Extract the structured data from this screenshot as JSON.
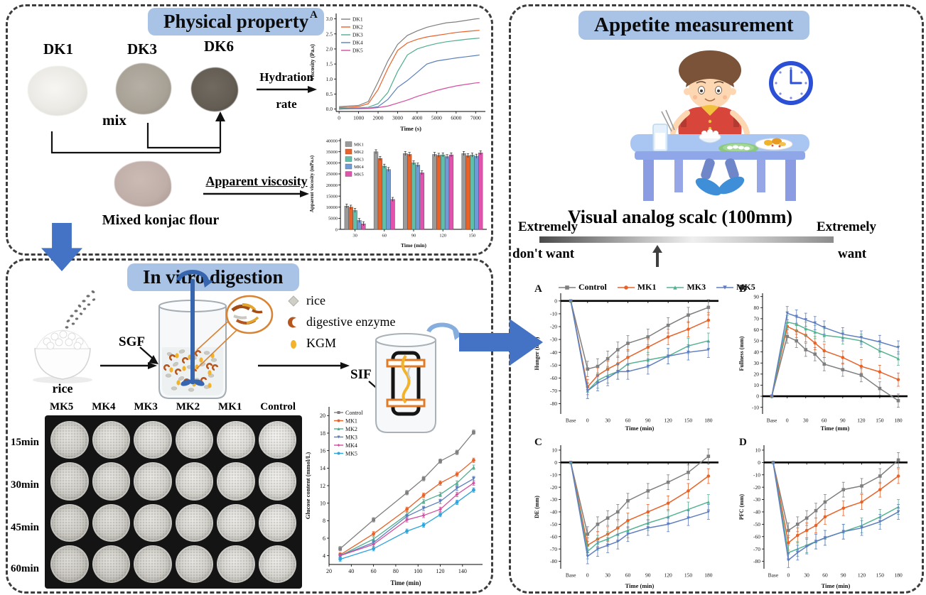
{
  "panels": {
    "physical": {
      "title": "Physical property",
      "samples": [
        "DK1",
        "DK3",
        "DK6"
      ],
      "mix_label": "mix",
      "hydration_label_1": "Hydration",
      "hydration_label_2": "rate",
      "flour_label": "Mixed konjac flour",
      "apparent_label": "Apparent viscosity"
    },
    "digestion": {
      "title": "In vitro digestion",
      "rice_label": "rice",
      "sgf_label": "SGF",
      "sif_label": "SIF",
      "legend": [
        "rice",
        "digestive enzyme",
        "KGM"
      ],
      "plate_columns": [
        "MK5",
        "MK4",
        "MK3",
        "MK2",
        "MK1",
        "Control"
      ],
      "plate_rows": [
        "15min",
        "30min",
        "45min",
        "60min"
      ]
    },
    "appetite": {
      "title": "Appetite measurement",
      "vas_title": "Visual analog scalc (100mm)",
      "left_label_1": "Extremely",
      "left_label_2": "don't want",
      "right_label_1": "Extremely",
      "right_label_2": "want"
    }
  },
  "colors": {
    "accent_arrow": "#4472c4",
    "title_bg": "#a9c3e6"
  },
  "chart_data": [
    {
      "id": "viscosity",
      "type": "line",
      "panel_label": "A",
      "xlabel": "Time (s)",
      "ylabel": "Viscosity (Pa.s)",
      "xlim": [
        -150,
        7500
      ],
      "ylim": [
        -0.08,
        3.18
      ],
      "xticks": [
        0,
        1000,
        2000,
        3000,
        4000,
        5000,
        6000,
        7000
      ],
      "yticks": [
        0,
        0.5,
        1,
        1.5,
        2,
        2.5,
        3
      ],
      "ytick_labels": [
        "0.0",
        "0.5",
        "1.0",
        "1.5",
        "2.0",
        "2.5",
        "3.0"
      ],
      "bottom_spine": true,
      "err": 0,
      "x": [
        0,
        500,
        1000,
        1500,
        2000,
        2500,
        3000,
        3500,
        4000,
        4500,
        5000,
        5500,
        6000,
        6500,
        7000,
        7200
      ],
      "series": [
        {
          "name": "DK1",
          "color": "#7f7f7f",
          "values": [
            0.08,
            0.1,
            0.12,
            0.25,
            0.9,
            1.6,
            2.15,
            2.45,
            2.6,
            2.72,
            2.8,
            2.87,
            2.9,
            2.95,
            3.0,
            3.01
          ]
        },
        {
          "name": "DK2",
          "color": "#e8632a",
          "values": [
            0.05,
            0.06,
            0.08,
            0.18,
            0.65,
            1.35,
            1.95,
            2.2,
            2.32,
            2.4,
            2.45,
            2.5,
            2.55,
            2.58,
            2.61,
            2.62
          ]
        },
        {
          "name": "DK3",
          "color": "#4fae8e",
          "values": [
            0.02,
            0.03,
            0.04,
            0.06,
            0.18,
            0.55,
            1.25,
            1.8,
            2.0,
            2.1,
            2.18,
            2.24,
            2.28,
            2.32,
            2.35,
            2.36
          ]
        },
        {
          "name": "DK4",
          "color": "#5b7fbd",
          "values": [
            0.0,
            0.01,
            0.02,
            0.03,
            0.08,
            0.32,
            0.72,
            0.95,
            1.22,
            1.5,
            1.6,
            1.65,
            1.7,
            1.74,
            1.78,
            1.8
          ]
        },
        {
          "name": "DK5",
          "color": "#d44f9f",
          "values": [
            0.0,
            0.01,
            0.01,
            0.02,
            0.05,
            0.1,
            0.2,
            0.3,
            0.42,
            0.52,
            0.62,
            0.7,
            0.77,
            0.82,
            0.87,
            0.88
          ]
        }
      ]
    },
    {
      "id": "apparent",
      "type": "bar",
      "xlabel": "Time (min)",
      "ylabel": "Apparent viscosity (mPa.s)",
      "categories": [
        "30",
        "60",
        "90",
        "120",
        "150"
      ],
      "ylim": [
        0,
        41000
      ],
      "yticks": [
        0,
        5000,
        10000,
        15000,
        20000,
        25000,
        30000,
        35000,
        40000
      ],
      "ytick_labels": [
        "0",
        "5000",
        "10000",
        "15000",
        "20000",
        "25000",
        "30000",
        "35000",
        "40000"
      ],
      "err": 900,
      "series": [
        {
          "name": "MK1",
          "color": "#9a9a9a",
          "values": [
            10500,
            35000,
            34200,
            33800,
            34200
          ]
        },
        {
          "name": "MK2",
          "color": "#e8632a",
          "values": [
            10000,
            32000,
            33800,
            33400,
            33200
          ]
        },
        {
          "name": "MK3",
          "color": "#5fbfa8",
          "values": [
            8500,
            28500,
            30000,
            33600,
            33500
          ]
        },
        {
          "name": "MK4",
          "color": "#6f9bd6",
          "values": [
            4000,
            27000,
            29000,
            32800,
            33000
          ]
        },
        {
          "name": "MK5",
          "color": "#e054ae",
          "values": [
            2500,
            13500,
            25500,
            33600,
            34500
          ]
        }
      ]
    },
    {
      "id": "glucose",
      "type": "line",
      "xlabel": "Time (min)",
      "ylabel": "Glucose content (mmol/L)",
      "xlim": [
        20,
        158
      ],
      "ylim": [
        3,
        21
      ],
      "xticks": [
        20,
        40,
        60,
        80,
        100,
        120,
        140
      ],
      "yticks": [
        4,
        6,
        8,
        10,
        12,
        14,
        16,
        18,
        20
      ],
      "bottom_spine": true,
      "err": 0.25,
      "x": [
        30,
        60,
        90,
        105,
        120,
        135,
        150
      ],
      "series": [
        {
          "name": "Control",
          "color": "#7f7f7f",
          "marker": "square",
          "values": [
            4.8,
            8.1,
            11.2,
            12.8,
            14.8,
            15.8,
            18.1
          ]
        },
        {
          "name": "MK1",
          "color": "#e8632a",
          "marker": "circle",
          "values": [
            4.1,
            6.5,
            9.3,
            10.9,
            12.3,
            13.3,
            14.9
          ]
        },
        {
          "name": "MK2",
          "color": "#4fae8e",
          "marker": "tri-up",
          "values": [
            4.0,
            5.9,
            8.7,
            10.2,
            11.0,
            12.3,
            14.1
          ]
        },
        {
          "name": "MK3",
          "color": "#5b7fbd",
          "marker": "tri-down",
          "values": [
            4.0,
            5.5,
            8.5,
            9.4,
            10.2,
            11.7,
            12.8
          ]
        },
        {
          "name": "MK4",
          "color": "#d44f9f",
          "marker": "diamond",
          "values": [
            4.0,
            5.3,
            8.1,
            8.6,
            9.3,
            11.0,
            12.3
          ]
        },
        {
          "name": "MK5",
          "color": "#2fa3dc",
          "marker": "circle",
          "values": [
            3.6,
            4.8,
            6.8,
            7.5,
            8.7,
            10.1,
            11.5
          ]
        }
      ]
    },
    {
      "id": "hunger",
      "type": "line",
      "panel_label": "A",
      "xlabel": "Time (min)",
      "ylabel": "Hunger (mm)",
      "xlim": [
        -40,
        195
      ],
      "ylim": [
        -88,
        6
      ],
      "x": [
        -25,
        0,
        15,
        30,
        45,
        60,
        90,
        120,
        150,
        180
      ],
      "xticks": [
        -25,
        0,
        30,
        60,
        90,
        120,
        150,
        180
      ],
      "xtick_labels": [
        "Base",
        "0",
        "30",
        "60",
        "90",
        "120",
        "150",
        "180"
      ],
      "yticks": [
        0,
        -10,
        -20,
        -30,
        -40,
        -50,
        -60,
        -70,
        -80
      ],
      "ytick_labels": [
        "0",
        "-10",
        "-20",
        "-30",
        "-40",
        "-50",
        "-60",
        "-70",
        "-80"
      ],
      "zero_line": 0,
      "err": 6,
      "err_skip_first": true,
      "series": [
        {
          "name": "Control",
          "color": "#7f7f7f",
          "marker": "square",
          "values": [
            0,
            -53,
            -51,
            -45,
            -38,
            -33,
            -28,
            -19,
            -11,
            -5
          ]
        },
        {
          "name": "MK1",
          "color": "#e8632a",
          "marker": "circle",
          "values": [
            0,
            -67,
            -58,
            -53,
            -49,
            -44,
            -36,
            -28,
            -22,
            -15
          ]
        },
        {
          "name": "MK3",
          "color": "#55b391",
          "marker": "tri-up",
          "values": [
            0,
            -70,
            -62,
            -58,
            -55,
            -49,
            -46,
            -43,
            -35,
            -31
          ]
        },
        {
          "name": "MK5",
          "color": "#5f7ec1",
          "marker": "tri-down",
          "values": [
            0,
            -70,
            -64,
            -60,
            -55,
            -55,
            -51,
            -43,
            -40,
            -38
          ]
        }
      ]
    },
    {
      "id": "fullness",
      "type": "line",
      "panel_label": "B",
      "xlabel": "Time (mm)",
      "ylabel": "Fullness (mm)",
      "xlim": [
        -40,
        195
      ],
      "ylim": [
        -16,
        93
      ],
      "x": [
        -25,
        0,
        15,
        30,
        45,
        60,
        90,
        120,
        150,
        180
      ],
      "xticks": [
        -25,
        0,
        30,
        60,
        90,
        120,
        150,
        180
      ],
      "xtick_labels": [
        "Base",
        "0",
        "30",
        "60",
        "90",
        "120",
        "150",
        "180"
      ],
      "yticks": [
        90,
        80,
        70,
        60,
        50,
        40,
        30,
        20,
        10,
        0,
        -10
      ],
      "ytick_labels": [
        "90",
        "80",
        "70",
        "60",
        "50",
        "40",
        "30",
        "20",
        "10",
        "0",
        "-10"
      ],
      "zero_line": 0,
      "err": 6,
      "err_skip_first": true,
      "series": [
        {
          "name": "Control",
          "color": "#7f7f7f",
          "marker": "square",
          "values": [
            0,
            54,
            50,
            42,
            38,
            29,
            24,
            19,
            7,
            -4
          ]
        },
        {
          "name": "MK1",
          "color": "#e8632a",
          "marker": "circle",
          "values": [
            0,
            63,
            59,
            55,
            48,
            41,
            35,
            27,
            22,
            15
          ]
        },
        {
          "name": "MK3",
          "color": "#55b391",
          "marker": "tri-up",
          "values": [
            0,
            67,
            65,
            61,
            58,
            55,
            53,
            50,
            41,
            34
          ]
        },
        {
          "name": "MK5",
          "color": "#5f7ec1",
          "marker": "tri-down",
          "values": [
            0,
            75,
            72,
            69,
            66,
            62,
            56,
            53,
            49,
            44
          ]
        }
      ]
    },
    {
      "id": "de",
      "type": "line",
      "panel_label": "C",
      "xlabel": "Time (min)",
      "ylabel": "DE (mm)",
      "xlim": [
        -40,
        195
      ],
      "ylim": [
        -86,
        14
      ],
      "x": [
        -25,
        0,
        15,
        30,
        45,
        60,
        90,
        120,
        150,
        180
      ],
      "xticks": [
        -25,
        0,
        30,
        60,
        90,
        120,
        150,
        180
      ],
      "xtick_labels": [
        "Base",
        "0",
        "30",
        "60",
        "90",
        "120",
        "150",
        "180"
      ],
      "yticks": [
        10,
        0,
        -10,
        -20,
        -30,
        -40,
        -50,
        -60,
        -70,
        -80
      ],
      "ytick_labels": [
        "10",
        "0",
        "-10",
        "-20",
        "-30",
        "-40",
        "-50",
        "-60",
        "-70",
        "-80"
      ],
      "zero_line": 0,
      "err": 6,
      "err_skip_first": true,
      "series": [
        {
          "name": "Control",
          "color": "#7f7f7f",
          "marker": "square",
          "values": [
            0,
            -58,
            -50,
            -45,
            -40,
            -31,
            -23,
            -16,
            -8,
            5
          ]
        },
        {
          "name": "MK1",
          "color": "#e8632a",
          "marker": "circle",
          "values": [
            0,
            -67,
            -62,
            -58,
            -53,
            -47,
            -40,
            -33,
            -23,
            -11
          ]
        },
        {
          "name": "MK3",
          "color": "#55b391",
          "marker": "tri-up",
          "values": [
            0,
            -72,
            -65,
            -62,
            -58,
            -55,
            -49,
            -44,
            -38,
            -32
          ]
        },
        {
          "name": "MK5",
          "color": "#5f7ec1",
          "marker": "tri-down",
          "values": [
            0,
            -76,
            -70,
            -67,
            -64,
            -58,
            -53,
            -50,
            -45,
            -40
          ]
        }
      ]
    },
    {
      "id": "pfc",
      "type": "line",
      "panel_label": "D",
      "xlabel": "Time (min)",
      "ylabel": "PFC (mm)",
      "xlim": [
        -40,
        195
      ],
      "ylim": [
        -86,
        14
      ],
      "x": [
        -25,
        0,
        15,
        30,
        45,
        60,
        90,
        120,
        150,
        180
      ],
      "xticks": [
        -25,
        0,
        30,
        60,
        90,
        120,
        150,
        180
      ],
      "xtick_labels": [
        "Base",
        "0",
        "30",
        "60",
        "90",
        "120",
        "150",
        "180"
      ],
      "yticks": [
        10,
        0,
        -10,
        -20,
        -30,
        -40,
        -50,
        -60,
        -70,
        -80
      ],
      "ytick_labels": [
        "10",
        "0",
        "-10",
        "-20",
        "-30",
        "-40",
        "-50",
        "-60",
        "-70",
        "-80"
      ],
      "zero_line": 0,
      "err": 6,
      "err_skip_first": true,
      "series": [
        {
          "name": "Control",
          "color": "#7f7f7f",
          "marker": "square",
          "values": [
            0,
            -55,
            -50,
            -45,
            -39,
            -32,
            -22,
            -19,
            -11,
            2
          ]
        },
        {
          "name": "MK1",
          "color": "#e8632a",
          "marker": "circle",
          "values": [
            0,
            -65,
            -59,
            -55,
            -51,
            -44,
            -37,
            -32,
            -22,
            -11
          ]
        },
        {
          "name": "MK3",
          "color": "#55b391",
          "marker": "tri-up",
          "values": [
            0,
            -73,
            -70,
            -67,
            -64,
            -61,
            -56,
            -51,
            -44,
            -36
          ]
        },
        {
          "name": "MK5",
          "color": "#5f7ec1",
          "marker": "tri-down",
          "values": [
            0,
            -79,
            -73,
            -68,
            -64,
            -61,
            -56,
            -53,
            -48,
            -40
          ]
        }
      ]
    }
  ]
}
